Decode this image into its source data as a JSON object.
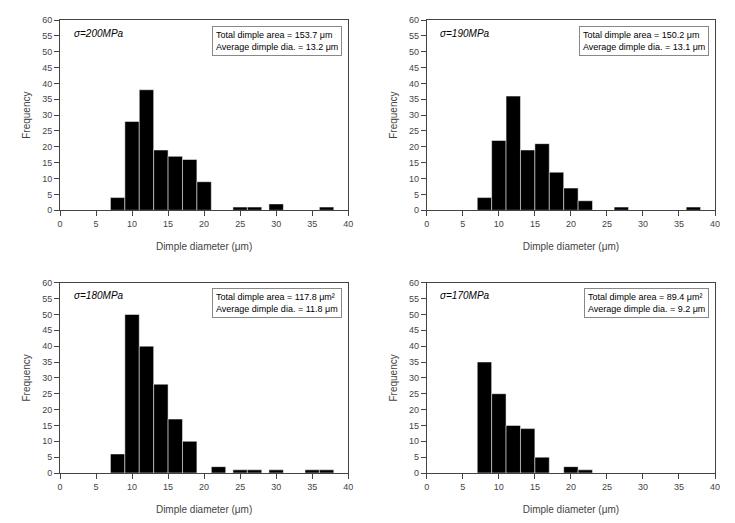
{
  "chart_data": [
    {
      "type": "bar",
      "x": [
        7,
        9,
        11,
        13,
        15,
        17,
        19,
        24,
        26,
        29,
        36
      ],
      "values": [
        4,
        28,
        38,
        19,
        17,
        16,
        9,
        1,
        1,
        2,
        1
      ],
      "bin_width": 2.0,
      "color": "#000000",
      "xlabel": "Dimple diameter (μm)",
      "ylabel": "Frequency",
      "xlim": [
        0,
        40
      ],
      "xticks": [
        0,
        5,
        10,
        15,
        20,
        25,
        30,
        35,
        40
      ],
      "ylim": [
        0,
        60
      ],
      "yticks": [
        0,
        5,
        10,
        15,
        20,
        25,
        30,
        35,
        40,
        45,
        50,
        55,
        60
      ],
      "annotations": [
        "σ=200MPa",
        "Total dimple area = 153.7 μm\nAverage dimple dia. = 13.2 μm"
      ],
      "grid": false
    },
    {
      "type": "bar",
      "x": [
        7,
        9,
        11,
        13,
        15,
        17,
        19,
        21,
        26,
        36
      ],
      "values": [
        4,
        22,
        36,
        19,
        21,
        12,
        7,
        3,
        1,
        1
      ],
      "bin_width": 2.0,
      "color": "#000000",
      "xlabel": "Dimple diameter (μm)",
      "ylabel": "Frequency",
      "xlim": [
        0,
        40
      ],
      "xticks": [
        0,
        5,
        10,
        15,
        20,
        25,
        30,
        35,
        40
      ],
      "ylim": [
        0,
        60
      ],
      "yticks": [
        0,
        5,
        10,
        15,
        20,
        25,
        30,
        35,
        40,
        45,
        50,
        55,
        60
      ],
      "annotations": [
        "σ=190MPa",
        "Total dimple area = 150.2 μm\nAverage dimple dia. = 13.1 μm"
      ],
      "grid": false
    },
    {
      "type": "bar",
      "x": [
        7,
        9,
        11,
        13,
        15,
        17,
        21,
        24,
        26,
        29,
        34,
        36
      ],
      "values": [
        6,
        50,
        40,
        28,
        17,
        10,
        2,
        1,
        1,
        1,
        1,
        1
      ],
      "bin_width": 2.0,
      "color": "#000000",
      "xlabel": "Dimple diameter (μm)",
      "ylabel": "Frequency",
      "xlim": [
        0,
        40
      ],
      "xticks": [
        0,
        5,
        10,
        15,
        20,
        25,
        30,
        35,
        40
      ],
      "ylim": [
        0,
        60
      ],
      "yticks": [
        0,
        5,
        10,
        15,
        20,
        25,
        30,
        35,
        40,
        45,
        50,
        55,
        60
      ],
      "annotations": [
        "σ=180MPa",
        "Total dimple area = 117.8 μm²\nAverage dimple dia. = 11.8 μm"
      ],
      "grid": false
    },
    {
      "type": "bar",
      "x": [
        7,
        9,
        11,
        13,
        15,
        19,
        21
      ],
      "values": [
        35,
        25,
        15,
        14,
        5,
        2,
        1
      ],
      "bin_width": 2.0,
      "color": "#000000",
      "xlabel": "Dimple diameter (μm)",
      "ylabel": "Frequency",
      "xlim": [
        0,
        40
      ],
      "xticks": [
        0,
        5,
        10,
        15,
        20,
        25,
        30,
        35,
        40
      ],
      "ylim": [
        0,
        60
      ],
      "yticks": [
        0,
        5,
        10,
        15,
        20,
        25,
        30,
        35,
        40,
        45,
        50,
        55,
        60
      ],
      "annotations": [
        "σ=170MPa",
        "Total dimple area = 89.4 μm²\nAverage dimple dia. = 9.2 μm"
      ],
      "grid": false
    }
  ]
}
